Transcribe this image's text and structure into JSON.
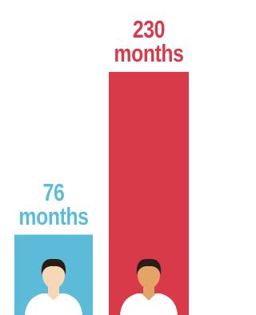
{
  "chart_data": {
    "type": "bar",
    "values": [
      76,
      230
    ],
    "value_labels": [
      "76 months",
      "230 months"
    ],
    "colors": [
      "#5bbbd9",
      "#d93a4a"
    ],
    "ylim": [
      0,
      298
    ]
  }
}
